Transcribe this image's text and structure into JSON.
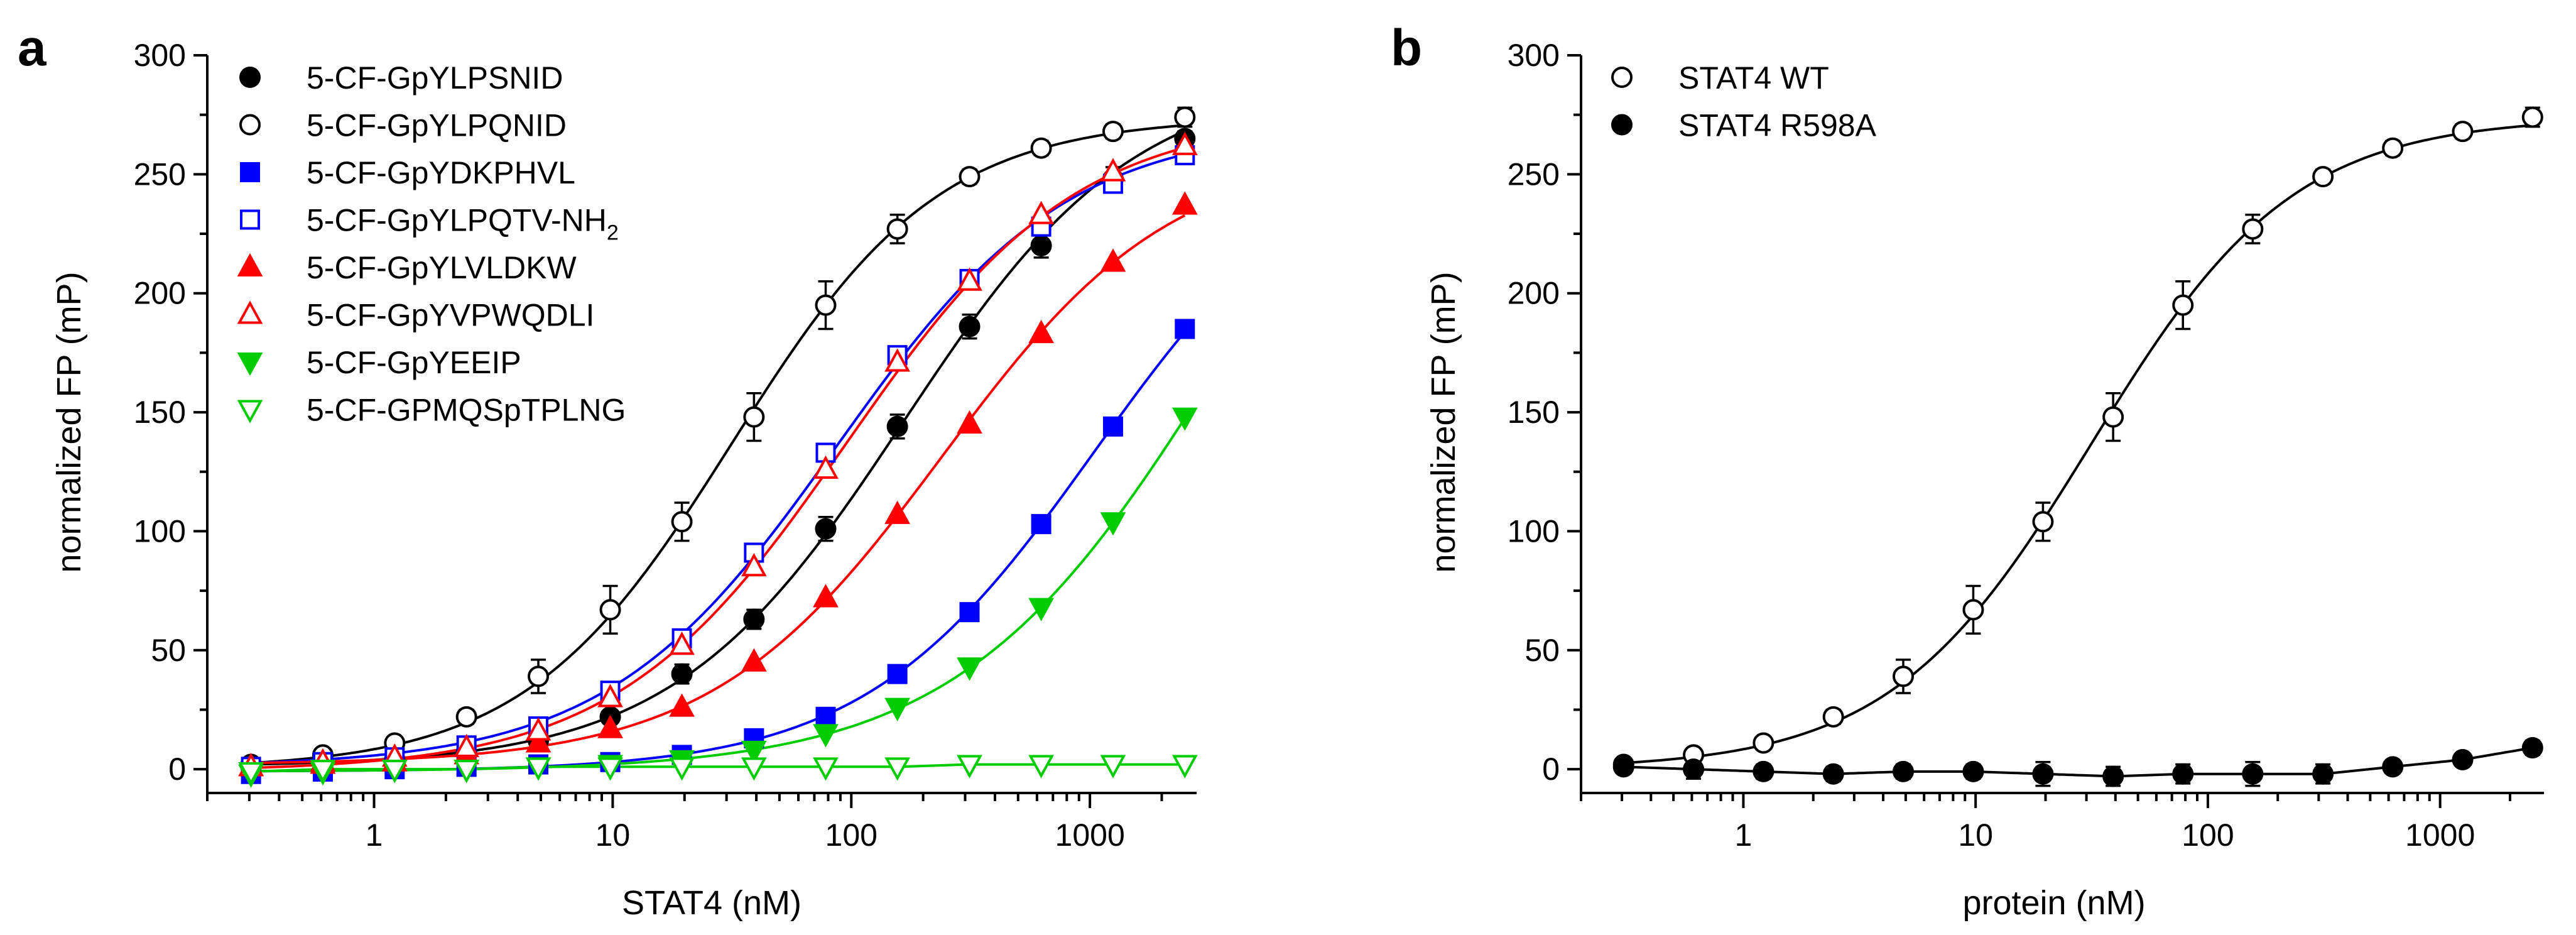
{
  "chart_data": [
    {
      "panel": "a",
      "type": "scatter",
      "xscale": "log",
      "xlabel": "STAT4 (nM)",
      "ylabel": "normalized FP (mP)",
      "xlim": [
        0.2,
        2800
      ],
      "ylim": [
        -10,
        300
      ],
      "xticks": [
        1,
        10,
        100,
        1000
      ],
      "xtick_labels": [
        "1",
        "10",
        "100",
        "1000"
      ],
      "yticks": [
        0,
        50,
        100,
        150,
        200,
        250,
        300
      ],
      "ytick_labels": [
        "0",
        "50",
        "100",
        "150",
        "200",
        "250",
        "300"
      ],
      "legend_position": "top-left",
      "x": [
        0.305,
        0.61,
        1.22,
        2.44,
        4.88,
        9.77,
        19.5,
        39.1,
        78.1,
        156,
        313,
        625,
        1250,
        2500
      ],
      "series": [
        {
          "name": "5-CF-GpYLPSNID",
          "name_main": "5-CF-GpYLPSNID",
          "name_sub": "",
          "name_tail": "",
          "color": "#000000",
          "marker": "circle",
          "filled": true,
          "values": [
            1,
            2,
            4,
            7,
            12,
            22,
            40,
            63,
            101,
            144,
            186,
            220,
            248,
            265
          ],
          "errors": [
            0,
            0,
            0,
            0,
            0,
            2,
            4,
            4,
            5,
            5,
            5,
            5,
            5,
            3
          ]
        },
        {
          "name": "5-CF-GpYLPQNID",
          "name_main": "5-CF-GpYLPQNID",
          "name_sub": "",
          "name_tail": "",
          "color": "#000000",
          "marker": "circle",
          "filled": false,
          "values": [
            2,
            6,
            11,
            22,
            39,
            67,
            104,
            148,
            195,
            227,
            249,
            261,
            268,
            274
          ],
          "errors": [
            0,
            0,
            2,
            3,
            7,
            10,
            8,
            10,
            10,
            6,
            3,
            3,
            3,
            4
          ]
        },
        {
          "name": "5-CF-GpYDKPHVL",
          "name_main": "5-CF-GpYDKPHVL",
          "name_sub": "",
          "name_tail": "",
          "color": "#0000ff",
          "marker": "square",
          "filled": true,
          "values": [
            -2,
            -1,
            0,
            1,
            2,
            3,
            6,
            13,
            22,
            40,
            66,
            103,
            144,
            185
          ],
          "errors": [
            0,
            0,
            0,
            0,
            0,
            0,
            0,
            0,
            0,
            0,
            0,
            0,
            0,
            0
          ]
        },
        {
          "name": "5-CF-GpYLPQTV-NH2",
          "name_main": "5-CF-GpYLPQTV-NH",
          "name_sub": "2",
          "name_tail": "",
          "color": "#0000ff",
          "marker": "square",
          "filled": false,
          "values": [
            1,
            3,
            5,
            10,
            18,
            33,
            55,
            91,
            133,
            174,
            206,
            228,
            246,
            258
          ],
          "errors": [
            0,
            0,
            0,
            0,
            0,
            0,
            0,
            0,
            0,
            0,
            0,
            0,
            0,
            0
          ]
        },
        {
          "name": "5-CF-GpYLVLDKW",
          "name_main": "5-CF-GpYLVLDKW",
          "name_sub": "",
          "name_tail": "",
          "color": "#ff0000",
          "marker": "triangle-up",
          "filled": true,
          "values": [
            1,
            2,
            3,
            6,
            11,
            17,
            26,
            45,
            72,
            107,
            145,
            183,
            213,
            237
          ],
          "errors": [
            0,
            0,
            0,
            0,
            0,
            0,
            0,
            0,
            0,
            0,
            0,
            0,
            0,
            0
          ]
        },
        {
          "name": "5-CF-GpYVPWQDLI",
          "name_main": "5-CF-GpYVPWQDLI",
          "name_sub": "",
          "name_tail": "",
          "color": "#ff0000",
          "marker": "triangle-up",
          "filled": false,
          "values": [
            1,
            3,
            5,
            9,
            16,
            30,
            52,
            85,
            126,
            171,
            205,
            233,
            251,
            262
          ],
          "errors": [
            0,
            0,
            0,
            0,
            0,
            0,
            0,
            0,
            0,
            0,
            0,
            0,
            0,
            0
          ]
        },
        {
          "name": "5-CF-GpYEEIP",
          "name_main": "5-CF-GpYEEIP",
          "name_sub": "",
          "name_tail": "",
          "color": "#00cc00",
          "marker": "triangle-down",
          "filled": true,
          "values": [
            -2,
            -1,
            0,
            0,
            1,
            2,
            4,
            8,
            15,
            26,
            43,
            68,
            104,
            148
          ],
          "errors": [
            0,
            0,
            0,
            0,
            0,
            0,
            0,
            0,
            0,
            0,
            0,
            0,
            0,
            0
          ]
        },
        {
          "name": "5-CF-GPMQSpTPLNG",
          "name_main": "5-CF-GPMQSpTPLNG",
          "name_sub": "",
          "name_tail": "",
          "color": "#00cc00",
          "marker": "triangle-down",
          "filled": false,
          "values": [
            -1,
            0,
            0,
            0,
            1,
            1,
            1,
            1,
            1,
            1,
            2,
            2,
            2,
            2
          ],
          "errors": [
            0,
            0,
            0,
            0,
            0,
            0,
            0,
            0,
            0,
            0,
            0,
            0,
            0,
            0
          ]
        }
      ]
    },
    {
      "panel": "b",
      "type": "scatter",
      "xscale": "log",
      "xlabel": "protein (nM)",
      "ylabel": "normalized FP (mP)",
      "xlim": [
        0.2,
        2800
      ],
      "ylim": [
        -10,
        300
      ],
      "xticks": [
        1,
        10,
        100,
        1000
      ],
      "xtick_labels": [
        "1",
        "10",
        "100",
        "1000"
      ],
      "yticks": [
        0,
        50,
        100,
        150,
        200,
        250,
        300
      ],
      "ytick_labels": [
        "0",
        "50",
        "100",
        "150",
        "200",
        "250",
        "300"
      ],
      "legend_position": "top-left",
      "x": [
        0.305,
        0.61,
        1.22,
        2.44,
        4.88,
        9.77,
        19.5,
        39.1,
        78.1,
        156,
        313,
        625,
        1250,
        2500
      ],
      "series": [
        {
          "name": "STAT4 WT",
          "name_main": "STAT4 WT",
          "name_sub": "",
          "name_tail": "",
          "color": "#000000",
          "marker": "circle",
          "filled": false,
          "values": [
            2,
            6,
            11,
            22,
            39,
            67,
            104,
            148,
            195,
            227,
            249,
            261,
            268,
            274
          ],
          "errors": [
            0,
            0,
            2,
            3,
            7,
            10,
            8,
            10,
            10,
            6,
            3,
            3,
            3,
            4
          ]
        },
        {
          "name": "STAT4 R598A",
          "name_main": "STAT4 R598A",
          "name_sub": "",
          "name_tail": "",
          "color": "#000000",
          "marker": "circle",
          "filled": true,
          "values": [
            1,
            0,
            -1,
            -2,
            -1,
            -1,
            -2,
            -3,
            -2,
            -2,
            -2,
            1,
            4,
            9
          ],
          "errors": [
            0,
            4,
            3,
            3,
            3,
            3,
            5,
            4,
            4,
            5,
            4,
            2,
            2,
            3
          ]
        }
      ]
    }
  ]
}
